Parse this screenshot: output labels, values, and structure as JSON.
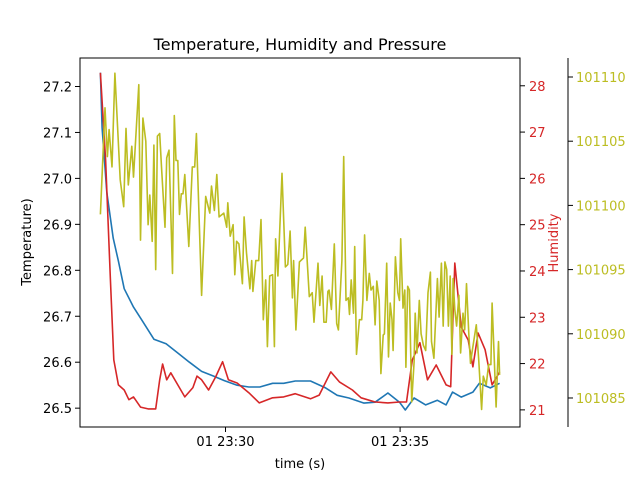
{
  "chart_data": {
    "type": "line",
    "title": "Temperature, Humidity and Pressure",
    "xlabel": "time (s)",
    "ylabel_left": "Temperature)",
    "ylabel_right": "Humidity",
    "x_ticks": [
      {
        "t_sec": 0,
        "label": "01 23:30"
      },
      {
        "t_sec": 300,
        "label": "01 23:35"
      }
    ],
    "xlim": [
      -250,
      506
    ],
    "axes": {
      "temperature": {
        "ylim": [
          26.459,
          27.262
        ],
        "ticks": [
          "26.5",
          "26.6",
          "26.7",
          "26.8",
          "26.9",
          "27.0",
          "27.1",
          "27.2"
        ]
      },
      "humidity": {
        "ylim": [
          20.63,
          28.6
        ],
        "ticks": [
          "21",
          "22",
          "23",
          "24",
          "25",
          "26",
          "27",
          "28"
        ]
      },
      "pressure": {
        "ylim": [
          101082.74,
          101111.48
        ],
        "ticks": [
          "101085",
          "101090",
          "101095",
          "101100",
          "101105",
          "101110"
        ]
      }
    },
    "grid": false,
    "colors": {
      "temperature": "#1f77b4",
      "humidity": "#d62728",
      "pressure": "#bcbd22"
    },
    "series": [
      {
        "name": "Temperature",
        "axis": "temperature",
        "t_sec": [
          -215,
          -212,
          -204,
          -193,
          -184,
          -174,
          -158,
          -143,
          -123,
          -102,
          -82,
          -62,
          -41,
          -21,
          -2,
          20,
          40,
          59,
          81,
          100,
          120,
          146,
          172,
          192,
          212,
          238,
          257,
          279,
          299,
          309,
          324,
          344,
          364,
          379,
          390,
          405,
          425,
          436,
          455,
          471
        ],
        "values": [
          27.23,
          27.11,
          26.97,
          26.87,
          26.82,
          26.76,
          26.72,
          26.69,
          26.65,
          26.64,
          26.62,
          26.6,
          26.58,
          26.57,
          26.56,
          26.55,
          26.546,
          26.546,
          26.554,
          26.554,
          26.559,
          26.559,
          26.544,
          26.528,
          26.522,
          26.511,
          26.513,
          26.533,
          26.513,
          26.496,
          26.522,
          26.507,
          26.517,
          26.507,
          26.535,
          26.524,
          26.535,
          26.554,
          26.544,
          26.554
        ]
      },
      {
        "name": "Humidity",
        "axis": "humidity",
        "t_sec": [
          -215,
          -206,
          -198,
          -192,
          -184,
          -174,
          -166,
          -158,
          -146,
          -133,
          -120,
          -113,
          -108,
          -101,
          -94,
          -82,
          -70,
          -56,
          -49,
          -41,
          -29,
          -17,
          -5,
          5,
          20,
          40,
          58,
          81,
          100,
          120,
          146,
          161,
          181,
          196,
          218,
          233,
          257,
          279,
          299,
          311,
          321,
          334,
          347,
          362,
          379,
          387,
          394,
          405,
          417,
          425,
          434,
          446,
          458,
          471
        ],
        "values": [
          28.28,
          26.4,
          23.87,
          22.08,
          21.54,
          21.43,
          21.22,
          21.28,
          21.06,
          21.02,
          21.02,
          21.65,
          21.99,
          21.65,
          21.8,
          21.54,
          21.28,
          21.48,
          21.73,
          21.65,
          21.43,
          21.71,
          22.04,
          21.65,
          21.58,
          21.37,
          21.15,
          21.26,
          21.28,
          21.35,
          21.24,
          21.32,
          21.82,
          21.6,
          21.43,
          21.26,
          21.17,
          21.15,
          21.17,
          21.17,
          22.08,
          22.45,
          21.65,
          21.97,
          21.54,
          21.5,
          24.17,
          22.79,
          22.51,
          21.93,
          22.66,
          22.3,
          21.54,
          21.82
        ]
      },
      {
        "name": "Pressure",
        "axis": "pressure",
        "t_sec": [
          -215,
          -207,
          -203,
          -200,
          -195,
          -190,
          -181,
          -175,
          -171,
          -167,
          -161,
          -158,
          -149,
          -146,
          -142,
          -137,
          -133,
          -130,
          -126,
          -123,
          -120,
          -117,
          -113,
          -110,
          -104,
          -101,
          -97,
          -91,
          -88,
          -85,
          -82,
          -79,
          -76,
          -73,
          -70,
          -63,
          -57,
          -53,
          -50,
          -41,
          -34,
          -27,
          -24,
          -19,
          -15,
          -11,
          -3,
          2,
          4,
          8,
          13,
          16,
          19,
          23,
          29,
          32,
          36,
          42,
          45,
          47,
          52,
          57,
          61,
          65,
          69,
          72,
          76,
          81,
          84,
          86,
          90,
          97,
          103,
          107,
          111,
          115,
          117,
          121,
          127,
          134,
          137,
          144,
          149,
          152,
          159,
          162,
          166,
          169,
          173,
          176,
          178,
          182,
          187,
          191,
          194,
          200,
          203,
          207,
          211,
          213,
          216,
          220,
          222,
          225,
          230,
          234,
          236,
          239,
          243,
          247,
          250,
          254,
          257,
          260,
          264,
          267,
          271,
          273,
          277,
          280,
          283,
          286,
          288,
          292,
          296,
          299,
          301,
          305,
          308,
          310,
          313,
          316,
          320,
          324,
          326,
          329,
          333,
          336,
          340,
          344,
          348,
          352,
          354,
          358,
          364,
          367,
          371,
          374,
          377,
          380,
          383,
          386,
          389,
          391,
          394,
          397,
          401,
          404,
          408,
          411,
          414,
          418,
          421,
          424,
          431,
          435,
          440,
          443,
          448,
          452,
          456,
          458,
          461,
          465,
          469,
          471
        ],
        "values": [
          101099.3,
          101107.6,
          101103.8,
          101105.9,
          101103.0,
          101110.3,
          101102.0,
          101099.9,
          101106.0,
          101101.6,
          101104.6,
          101102.2,
          101109.4,
          101097.3,
          101106.8,
          101105.0,
          101098.5,
          101100.8,
          101097.2,
          101104.7,
          101095.0,
          101105.4,
          101105.6,
          101103.0,
          101098.3,
          101103.7,
          101104.3,
          101094.7,
          101107.0,
          101103.5,
          101103.5,
          101099.3,
          101100.9,
          101100.9,
          101102.4,
          101096.8,
          101103.0,
          101103.0,
          101105.6,
          101093.0,
          101100.7,
          101099.4,
          101101.5,
          101099.6,
          101102.4,
          101099.1,
          101099.4,
          101098.3,
          101100.2,
          101097.6,
          101098.5,
          101094.6,
          101097.2,
          101097.0,
          101093.9,
          101099.1,
          101096.3,
          101093.5,
          101095.7,
          101093.3,
          101095.7,
          101095.7,
          101098.9,
          101091.1,
          101094.2,
          101089.0,
          101094.5,
          101094.6,
          101089.0,
          101097.4,
          101094.5,
          101102.5,
          101095.2,
          101095.4,
          101098.0,
          101092.8,
          101095.7,
          101090.3,
          101095.6,
          101095.9,
          101098.3,
          101092.9,
          101093.2,
          101090.9,
          101095.5,
          101092.2,
          101094.5,
          101090.9,
          101090.9,
          101093.3,
          101093.4,
          101091.9,
          101097.0,
          101090.8,
          101090.3,
          101095.7,
          101103.8,
          101092.6,
          101092.8,
          101091.5,
          101094.2,
          101091.6,
          101096.8,
          101088.4,
          101091.1,
          101091.1,
          101092.6,
          101097.7,
          101092.6,
          101094.7,
          101093.4,
          101093.7,
          101090.7,
          101094.1,
          101092.6,
          101086.9,
          101089.9,
          101090.0,
          101095.5,
          101088.2,
          101092.4,
          101091.1,
          101088.7,
          101096.0,
          101093.2,
          101092.6,
          101097.4,
          101092.0,
          101093.4,
          101087.4,
          101093.7,
          101093.4,
          101084.7,
          101087.8,
          101091.6,
          101088.5,
          101092.6,
          101090.0,
          101089.1,
          101088.7,
          101093.2,
          101094.8,
          101089.4,
          101088.1,
          101094.3,
          101091.3,
          101095.5,
          101090.6,
          101095.6,
          101095.0,
          101090.6,
          101094.5,
          101088.4,
          101094.3,
          101091.9,
          101090.6,
          101093.0,
          101088.5,
          101091.6,
          101090.3,
          101093.9,
          101090.0,
          101087.7,
          101088.7,
          101090.7,
          101088.0,
          101084.1,
          101086.7,
          101086.0,
          101087.6,
          101087.6,
          101092.4,
          101089.0,
          101084.3,
          101089.4,
          101086.8
        ]
      }
    ]
  }
}
